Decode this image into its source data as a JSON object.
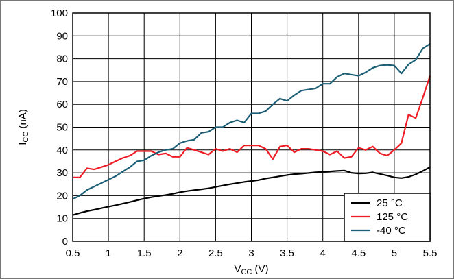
{
  "chart_data": {
    "type": "line",
    "title": "",
    "xlabel": "V",
    "xlabel_sub": "CC",
    "xlabel_unit": " (V)",
    "ylabel": "I",
    "ylabel_sub": "CC",
    "ylabel_unit": " (nA)",
    "xlim": [
      0.5,
      5.5
    ],
    "ylim": [
      0,
      100
    ],
    "xticks": [
      0.5,
      1,
      1.5,
      2,
      2.5,
      3,
      3.5,
      4,
      4.5,
      5,
      5.5
    ],
    "xtick_labels": [
      "0.5",
      "1",
      "1.5",
      "2",
      "2.5",
      "3",
      "3.5",
      "4",
      "4.5",
      "5",
      "5.5"
    ],
    "yticks": [
      0,
      10,
      20,
      30,
      40,
      50,
      60,
      70,
      80,
      90,
      100
    ],
    "ytick_labels": [
      "0",
      "10",
      "20",
      "30",
      "40",
      "50",
      "60",
      "70",
      "80",
      "90",
      "100"
    ],
    "grid": true,
    "legend_position": "bottom-right",
    "series": [
      {
        "name": "25 °C",
        "color": "#000000",
        "x": [
          0.5,
          0.6,
          0.7,
          0.8,
          0.9,
          1.0,
          1.1,
          1.2,
          1.3,
          1.4,
          1.5,
          1.6,
          1.7,
          1.8,
          1.9,
          2.0,
          2.1,
          2.2,
          2.3,
          2.4,
          2.5,
          2.6,
          2.7,
          2.8,
          2.9,
          3.0,
          3.1,
          3.2,
          3.3,
          3.4,
          3.5,
          3.6,
          3.7,
          3.8,
          3.9,
          4.0,
          4.1,
          4.2,
          4.3,
          4.4,
          4.5,
          4.6,
          4.7,
          4.8,
          4.9,
          5.0,
          5.1,
          5.2,
          5.3,
          5.4,
          5.5
        ],
        "y": [
          11.5,
          12.4,
          13.2,
          13.8,
          14.5,
          15.2,
          15.8,
          16.5,
          17.2,
          18,
          18.7,
          19.3,
          19.8,
          20.3,
          20.8,
          21.5,
          22,
          22.4,
          22.8,
          23.2,
          23.8,
          24.4,
          25,
          25.5,
          26,
          26.4,
          26.8,
          27.5,
          28,
          28.5,
          29,
          29.4,
          29.6,
          29.9,
          30.2,
          30.4,
          30.6,
          30.8,
          31,
          30,
          29.7,
          29.8,
          30.2,
          29.5,
          28.8,
          28,
          27.7,
          28.2,
          29.3,
          30.8,
          32.5
        ]
      },
      {
        "name": "125 °C",
        "color": "#ee1c25",
        "x": [
          0.5,
          0.6,
          0.7,
          0.8,
          0.9,
          1.0,
          1.1,
          1.2,
          1.3,
          1.4,
          1.5,
          1.6,
          1.7,
          1.8,
          1.9,
          2.0,
          2.1,
          2.2,
          2.3,
          2.4,
          2.5,
          2.6,
          2.7,
          2.8,
          2.9,
          3.0,
          3.1,
          3.2,
          3.3,
          3.4,
          3.5,
          3.6,
          3.7,
          3.8,
          3.9,
          4.0,
          4.1,
          4.2,
          4.3,
          4.4,
          4.5,
          4.6,
          4.7,
          4.8,
          4.9,
          5.0,
          5.1,
          5.2,
          5.3,
          5.4,
          5.5
        ],
        "y": [
          28,
          28,
          32,
          31.5,
          32.5,
          33.5,
          35,
          36.5,
          37.5,
          39.5,
          39.5,
          39.5,
          38,
          38.5,
          37,
          37,
          41,
          40,
          39,
          38,
          40.5,
          39.5,
          40.5,
          39,
          42,
          42,
          42,
          40.5,
          36,
          41.5,
          42,
          39,
          40.5,
          40.5,
          40,
          39.5,
          38,
          39.5,
          36.5,
          37,
          41,
          40,
          41.5,
          38.5,
          37.5,
          40,
          43,
          55.5,
          54,
          63,
          72.5
        ]
      },
      {
        "name": "-40 °C",
        "color": "#1b5e75",
        "x": [
          0.5,
          0.6,
          0.7,
          0.8,
          0.9,
          1.0,
          1.1,
          1.2,
          1.3,
          1.4,
          1.5,
          1.6,
          1.7,
          1.8,
          1.9,
          2.0,
          2.1,
          2.2,
          2.3,
          2.4,
          2.5,
          2.6,
          2.7,
          2.8,
          2.9,
          3.0,
          3.1,
          3.2,
          3.3,
          3.4,
          3.5,
          3.6,
          3.7,
          3.8,
          3.9,
          4.0,
          4.1,
          4.2,
          4.3,
          4.4,
          4.5,
          4.6,
          4.7,
          4.8,
          4.9,
          5.0,
          5.1,
          5.2,
          5.3,
          5.4,
          5.5
        ],
        "y": [
          18.5,
          20,
          22.5,
          24,
          25.5,
          27,
          28.5,
          30.5,
          32.5,
          35,
          35.5,
          37.5,
          39,
          40,
          40.5,
          43,
          44,
          44.5,
          47.5,
          48,
          50,
          50,
          52,
          53,
          52,
          56,
          56,
          57,
          60,
          62.5,
          61.5,
          64,
          66,
          66.5,
          67,
          69,
          69,
          72,
          73.5,
          73,
          72.5,
          74,
          76,
          77,
          77.3,
          77,
          73.5,
          77.5,
          79.5,
          84.5,
          86.5
        ]
      }
    ]
  }
}
